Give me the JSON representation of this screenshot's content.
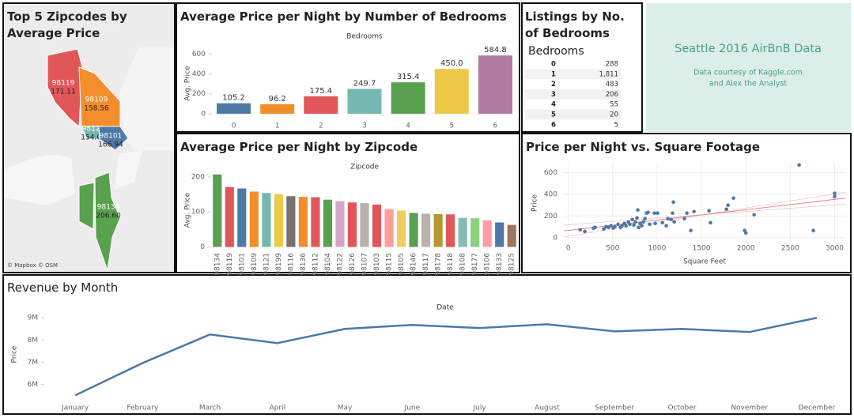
{
  "chart_data": [
    {
      "type": "map",
      "title": "Top 5 Zipcodes by Average Price",
      "credit": "© Mapbox © OSM",
      "categories": [
        "98119",
        "98109",
        "98121",
        "98101",
        "98134"
      ],
      "values": [
        171.11,
        158.56,
        154.03,
        166.94,
        206.6
      ],
      "value_labels": [
        "171.11",
        "158.56",
        "154.03",
        "166.94",
        "206.60"
      ],
      "colors": [
        "#e15759",
        "#f28e2b",
        "#76b7b2",
        "#4e79a7",
        "#59a14f"
      ]
    },
    {
      "type": "bar",
      "title": "Average Price per Night by Number of Bedrooms",
      "x_label": "Bedrooms",
      "y_label": "Avg. Price",
      "categories": [
        "0",
        "1",
        "2",
        "3",
        "4",
        "5",
        "6"
      ],
      "values": [
        105.2,
        96.2,
        175.4,
        249.7,
        315.4,
        450.0,
        584.8
      ],
      "value_labels": [
        "105.2",
        "96.2",
        "175.4",
        "249.7",
        "315.4",
        "450.0",
        "584.8"
      ],
      "colors": [
        "#4e79a7",
        "#f28e2b",
        "#e15759",
        "#76b7b2",
        "#59a14f",
        "#edc948",
        "#b07aa1"
      ],
      "ylim": [
        -40,
        650
      ],
      "yticks": [
        0,
        200,
        400,
        600
      ]
    },
    {
      "type": "bar",
      "title": "Average Price per Night by Zipcode",
      "x_label": "Zipcode",
      "y_label": "Avg. Price",
      "categories": [
        "98134",
        "98119",
        "98101",
        "98109",
        "98121",
        "98199",
        "98116",
        "98136",
        "98112",
        "98104",
        "98122",
        "98126",
        "98107",
        "98103",
        "98115",
        "98105",
        "98146",
        "98117",
        "98178",
        "98118",
        "98108",
        "98177",
        "98106",
        "98133",
        "98125"
      ],
      "values": [
        207,
        171,
        167,
        158,
        154,
        151,
        145,
        143,
        142,
        135,
        131,
        127,
        125,
        121,
        108,
        104,
        97,
        95,
        94,
        93,
        83,
        82,
        76,
        70,
        63
      ],
      "colors": [
        "#59a14f",
        "#e15759",
        "#4e79a7",
        "#f28e2b",
        "#76b7b2",
        "#edc948",
        "#79706e",
        "#f28e2b",
        "#e15759",
        "#59a14f",
        "#d4a6c8",
        "#e15759",
        "#bab0ac",
        "#e15759",
        "#ff9d9a",
        "#f1ce63",
        "#59a14f",
        "#bab0ac",
        "#b6992d",
        "#e15759",
        "#86bcb6",
        "#8cd17d",
        "#ff9da7",
        "#4e79a7",
        "#9d7660"
      ],
      "ylim": [
        -10,
        220
      ],
      "yticks": [
        0,
        100,
        200
      ]
    },
    {
      "type": "scatter",
      "title": "Price per Night vs. Square Footage",
      "x_label": "Square Feet",
      "y_label": "Price",
      "color": "#4e79a7",
      "x": [
        134,
        187,
        285,
        303,
        400,
        427,
        454,
        481,
        507,
        525,
        561,
        588,
        605,
        632,
        650,
        677,
        694,
        721,
        739,
        757,
        774,
        783,
        792,
        810,
        828,
        846,
        864,
        881,
        899,
        917,
        970,
        979,
        1006,
        1060,
        1104,
        1122,
        1158,
        1175,
        1184,
        1193,
        1309,
        1336,
        1380,
        1416,
        1585,
        1602,
        1781,
        1799,
        1861,
        1986,
        2000,
        2093,
        2600,
        2760,
        3000,
        3000
      ],
      "y": [
        73,
        58,
        88,
        95,
        80,
        102,
        95,
        110,
        88,
        102,
        124,
        95,
        110,
        132,
        110,
        146,
        124,
        168,
        117,
        146,
        183,
        256,
        95,
        132,
        110,
        146,
        176,
        227,
        234,
        124,
        227,
        132,
        227,
        139,
        110,
        176,
        168,
        227,
        329,
        146,
        176,
        227,
        66,
        241,
        249,
        139,
        263,
        300,
        366,
        66,
        44,
        212,
        673,
        66,
        410,
        380
      ],
      "xlim": [
        -50,
        3120
      ],
      "ylim": [
        -60,
        700
      ],
      "xticks": [
        0,
        500,
        1000,
        1500,
        2000,
        2500,
        3000
      ],
      "yticks": [
        0,
        200,
        400,
        600
      ],
      "grid": true,
      "trend_color": "#e8868a"
    },
    {
      "type": "line",
      "title": "Revenue by Month",
      "x_label": "Date",
      "y_label": "Price",
      "color": "#4e79a7",
      "categories": [
        "January",
        "February",
        "March",
        "April",
        "May",
        "June",
        "July",
        "August",
        "September",
        "October",
        "November",
        "December"
      ],
      "values": [
        5500000,
        6960000,
        8250000,
        7860000,
        8500000,
        8680000,
        8540000,
        8710000,
        8390000,
        8500000,
        8360000,
        9000000
      ],
      "ylim": [
        5300000,
        9400000
      ],
      "yticks": [
        {
          "value": 6000000,
          "label": "6M"
        },
        {
          "value": 7000000,
          "label": "7M"
        },
        {
          "value": 8000000,
          "label": "8M"
        },
        {
          "value": 9000000,
          "label": "9M"
        }
      ]
    }
  ],
  "table": {
    "title": "Listings by No. of Bedrooms",
    "header": "Bedrooms",
    "rows": [
      [
        "0",
        "288"
      ],
      [
        "1",
        "1,811"
      ],
      [
        "2",
        "483"
      ],
      [
        "3",
        "206"
      ],
      [
        "4",
        "55"
      ],
      [
        "5",
        "20"
      ],
      [
        "6",
        "5"
      ]
    ]
  },
  "title_card": {
    "title": "Seattle 2016 AirBnB Data",
    "lines": [
      "Data courtesy of Kaggle.com",
      "and Alex the Analyst"
    ]
  }
}
